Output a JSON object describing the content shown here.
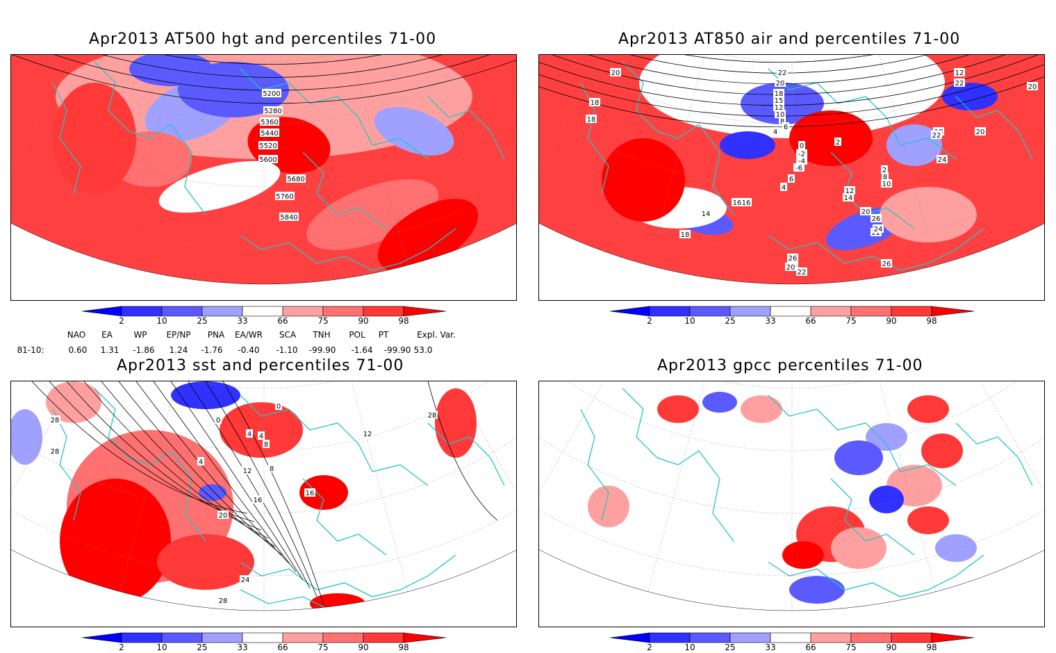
{
  "panels": [
    {
      "title": "Apr2013 AT500 hgt and percentiles 71-00",
      "contour_labels": [
        "5200",
        "5280",
        "5360",
        "5440",
        "5520",
        "5600",
        "5680",
        "5760",
        "5840"
      ]
    },
    {
      "title": "Apr2013 AT850 air and percentiles 71-00",
      "contour_labels": [
        "20",
        "18",
        "18",
        "22",
        "20",
        "18",
        "15",
        "12",
        "10",
        "8",
        "6",
        "4",
        "2",
        "0",
        "-2",
        "-4",
        "-6",
        "6",
        "4",
        "2",
        "8",
        "10",
        "12",
        "14",
        "16",
        "18",
        "20",
        "22",
        "24",
        "26",
        "26",
        "26",
        "24",
        "22",
        "20",
        "16",
        "14",
        "12",
        "22",
        "20",
        "18",
        "24",
        "22",
        "20"
      ]
    },
    {
      "title": "Apr2013 sst and percentiles 71-00",
      "contour_labels": [
        "28",
        "28",
        "0",
        "0",
        "4",
        "4",
        "8",
        "8",
        "4",
        "12",
        "16",
        "16",
        "20",
        "24",
        "28",
        "12",
        "28"
      ]
    },
    {
      "title": "Apr2013 gpcc percentiles 71-00",
      "contour_labels": []
    }
  ],
  "colorbar": {
    "labels": [
      "2",
      "10",
      "25",
      "33",
      "66",
      "75",
      "90",
      "98"
    ],
    "colors": {
      "blue_extreme": "#0000ff",
      "blue_2": "#3030ff",
      "blue_10": "#5a5aff",
      "blue_25": "#a0a0ff",
      "white": "#ffffff",
      "red_66": "#ffa0a0",
      "red_75": "#ff7070",
      "red_90": "#ff3838",
      "red_98": "#ff0000"
    }
  },
  "indices": {
    "headers": [
      "NAO",
      "EA",
      "WP",
      "EP/NP",
      "PNA",
      "EA/WR",
      "SCA",
      "TNH",
      "POL",
      "PT",
      "Expl. Var."
    ],
    "row_label": "81-10:",
    "values": [
      "0.60",
      "1.31",
      "-1.86",
      "1.24",
      "-1.76",
      "-0.40",
      "-1.10",
      "-99.90",
      "-1.64",
      "-99.90",
      "53.0"
    ]
  },
  "map_colors": {
    "coast": "#22c5c5",
    "contour": "#000000",
    "grid": "#888888"
  }
}
